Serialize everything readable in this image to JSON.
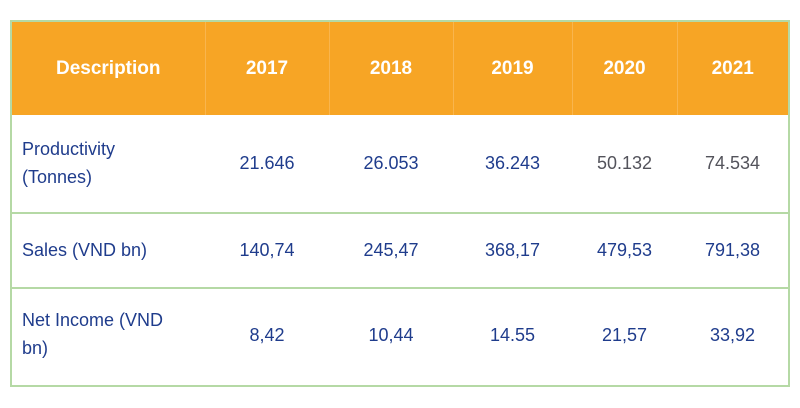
{
  "colors": {
    "header_bg": "#F7A525",
    "header_divider": "#F9B54D",
    "header_text": "#FFFFFF",
    "text_navy": "#1F3C8C",
    "text_gray": "#53535B",
    "border_green": "#B5D9A5",
    "page_bg": "#FFFFFF"
  },
  "table": {
    "header": [
      "Description",
      "2017",
      "2018",
      "2019",
      "2020",
      "2021"
    ],
    "rows": [
      {
        "label": "Productivity (Tonnes)",
        "values": [
          "21.646",
          "26.053",
          "36.243",
          "50.132",
          "74.534"
        ],
        "muted": [
          false,
          false,
          false,
          true,
          true
        ]
      },
      {
        "label": "Sales (VND bn)",
        "values": [
          "140,74",
          "245,47",
          "368,17",
          "479,53",
          "791,38"
        ],
        "muted": [
          false,
          false,
          false,
          false,
          false
        ]
      },
      {
        "label": "Net Income (VND bn)",
        "values": [
          "8,42",
          "10,44",
          "14.55",
          "21,57",
          "33,92"
        ],
        "muted": [
          false,
          false,
          false,
          false,
          false
        ]
      }
    ]
  },
  "chart_data": {
    "type": "table",
    "title": "",
    "columns": [
      "Description",
      "2017",
      "2018",
      "2019",
      "2020",
      "2021"
    ],
    "rows": [
      [
        "Productivity (Tonnes)",
        "21.646",
        "26.053",
        "36.243",
        "50.132",
        "74.534"
      ],
      [
        "Sales (VND bn)",
        "140,74",
        "245,47",
        "368,17",
        "479,53",
        "791,38"
      ],
      [
        "Net Income (VND bn)",
        "8,42",
        "10,44",
        "14.55",
        "21,57",
        "33,92"
      ]
    ]
  }
}
